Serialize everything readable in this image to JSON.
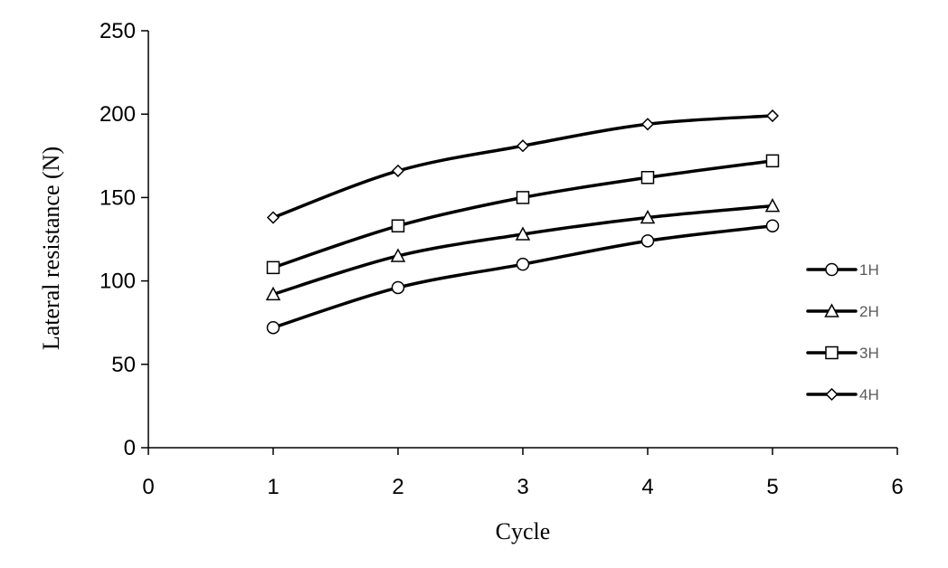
{
  "chart_data": {
    "type": "line",
    "xlabel": "Cycle",
    "ylabel": "Lateral resistance (N)",
    "xlim": [
      0,
      6
    ],
    "ylim": [
      0,
      250
    ],
    "xticks": [
      0,
      1,
      2,
      3,
      4,
      5,
      6
    ],
    "yticks": [
      0,
      50,
      100,
      150,
      200,
      250
    ],
    "grid": false,
    "legend_position": "right",
    "x": [
      1,
      2,
      3,
      4,
      5
    ],
    "series": [
      {
        "name": "1H",
        "marker": "circle",
        "values": [
          72,
          96,
          110,
          124,
          133
        ]
      },
      {
        "name": "2H",
        "marker": "triangle",
        "values": [
          92,
          115,
          128,
          138,
          145
        ]
      },
      {
        "name": "3H",
        "marker": "square",
        "values": [
          108,
          133,
          150,
          162,
          172
        ]
      },
      {
        "name": "4H",
        "marker": "diamond",
        "values": [
          138,
          166,
          181,
          194,
          199
        ]
      }
    ],
    "line_color": "#000000",
    "legend_text_color": "#595959"
  }
}
